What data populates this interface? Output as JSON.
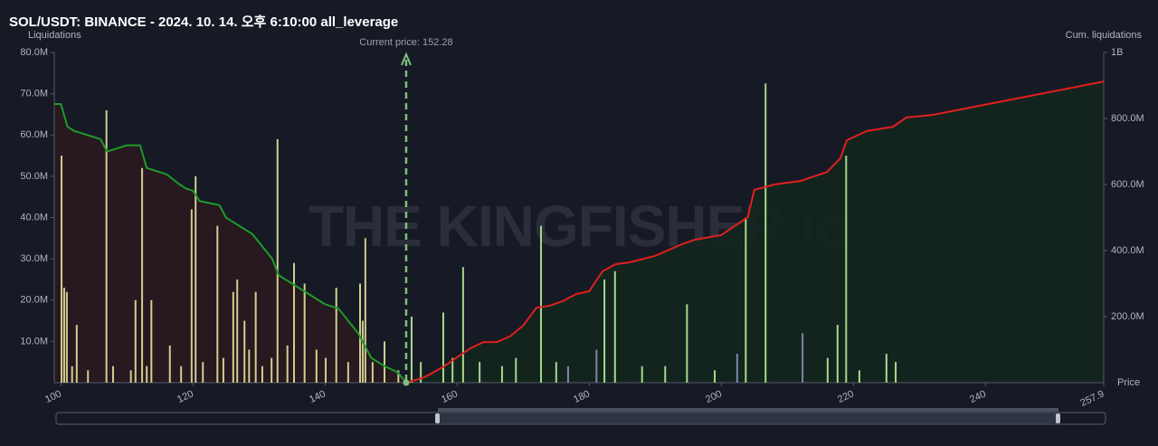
{
  "chart_data": {
    "type": "bar",
    "title": "SOL/USDT: BINANCE - 2024. 10. 14. 오후 6:10:00 all_leverage",
    "y_label": "Liquidations",
    "y2_label": "Cum. liquidations",
    "x_label": "Price",
    "watermark": "THE KINGFISHER.io",
    "annotation": {
      "value": 152.28,
      "label": "Current price: 152.28",
      "color": "#7fbf7f"
    },
    "xlim": [
      99,
      257.9
    ],
    "xticks": [
      100,
      120,
      140,
      160,
      180,
      200,
      220,
      240,
      257.9
    ],
    "ylim": [
      0,
      80000000
    ],
    "yticks": [
      {
        "value": 10000000,
        "label": "10.0M"
      },
      {
        "value": 20000000,
        "label": "20.0M"
      },
      {
        "value": 30000000,
        "label": "30.0M"
      },
      {
        "value": 40000000,
        "label": "40.0M"
      },
      {
        "value": 50000000,
        "label": "50.0M"
      },
      {
        "value": 60000000,
        "label": "60.0M"
      },
      {
        "value": 70000000,
        "label": "70.0M"
      },
      {
        "value": 80000000,
        "label": "80.0M"
      }
    ],
    "y2lim": [
      0,
      1000000000
    ],
    "y2ticks": [
      {
        "value": 200000000,
        "label": "200.0M"
      },
      {
        "value": 400000000,
        "label": "400.0M"
      },
      {
        "value": 600000000,
        "label": "600.0M"
      },
      {
        "value": 800000000,
        "label": "800.0M"
      },
      {
        "value": 1000000000,
        "label": "1B"
      }
    ],
    "series": [
      {
        "color": "#cfcf8f",
        "x": [
          100.1,
          100.5,
          100.9,
          101.7,
          102.4,
          104.1,
          106.9,
          107.9,
          110.6,
          111.3,
          112.3,
          113.0,
          113.7,
          116.5,
          118.2,
          119.8,
          120.4,
          121.5,
          123.7,
          124.6,
          126.1,
          126.7,
          127.8,
          128.5,
          129.5,
          130.5,
          131.9,
          132.8,
          134.3,
          135.3,
          136.9,
          138.7,
          140.1,
          141.7,
          143.5,
          145.3,
          145.7,
          146.1,
          147.2,
          149.0,
          151.1
        ],
        "values": [
          55000000,
          23000000,
          22000000,
          4000000,
          14000000,
          3000000,
          66000000,
          4000000,
          3000000,
          20000000,
          52000000,
          4000000,
          20000000,
          9000000,
          4000000,
          42000000,
          50000000,
          5000000,
          38000000,
          6000000,
          22000000,
          25000000,
          15000000,
          8000000,
          22000000,
          4000000,
          6000000,
          59000000,
          9000000,
          29000000,
          24000000,
          8000000,
          6000000,
          23000000,
          5000000,
          24000000,
          15000000,
          35000000,
          5000000,
          10000000,
          3000000
        ]
      },
      {
        "color": "#a6d98a",
        "x": [
          153.1,
          154.5,
          157.9,
          159.3,
          160.9,
          163.4,
          166.8,
          168.9,
          172.7,
          175.0,
          182.3,
          183.9,
          188.0,
          191.5,
          194.8,
          199.0,
          203.7,
          206.7,
          216.1,
          217.6,
          218.9,
          220.9,
          225.0,
          226.4
        ],
        "values": [
          16000000,
          5000000,
          17000000,
          6000000,
          28000000,
          5000000,
          4000000,
          6000000,
          38000000,
          5000000,
          25000000,
          27000000,
          4000000,
          4000000,
          19000000,
          3000000,
          40000000,
          72500000,
          6000000,
          14000000,
          55000000,
          3000000,
          7000000,
          5000000
        ]
      },
      {
        "color": "#7f86a8",
        "x": [
          176.8,
          181.1,
          202.4,
          212.3
        ],
        "values": [
          4000000,
          8000000,
          7000000,
          12000000
        ]
      }
    ],
    "lines": [
      {
        "color": "#1f9a2a",
        "fill": "#2a1820",
        "axis": "y",
        "x": [
          99,
          100,
          101,
          102,
          103,
          104,
          105,
          106,
          107,
          108,
          110,
          112,
          113,
          115,
          116,
          118,
          119,
          120,
          121,
          124,
          125,
          127,
          129,
          130,
          131,
          132,
          133,
          135,
          137,
          140,
          142,
          143,
          145,
          146,
          147,
          149,
          151,
          152.28
        ],
        "values": [
          67500000,
          67500000,
          62000000,
          61000000,
          60500000,
          60000000,
          59500000,
          59000000,
          56000000,
          56500000,
          57500000,
          57500000,
          52000000,
          51000000,
          50500000,
          48000000,
          47000000,
          46500000,
          44000000,
          43000000,
          40000000,
          38000000,
          36000000,
          34000000,
          32000000,
          30000000,
          26000000,
          24000000,
          22000000,
          19000000,
          18000000,
          16000000,
          12000000,
          9000000,
          6000000,
          4000000,
          2500000,
          0
        ]
      },
      {
        "color": "#e0201e",
        "fill": "#13261f",
        "axis": "y2",
        "x": [
          152.28,
          155,
          158,
          160,
          162,
          164,
          166,
          168,
          170,
          172,
          174,
          176,
          178,
          180,
          182,
          184,
          186,
          190,
          194,
          196,
          200,
          202,
          204,
          205,
          208,
          212,
          216,
          218,
          219,
          222,
          226,
          228,
          232,
          257.9
        ],
        "values": [
          0,
          16000000,
          49000000,
          77000000,
          104000000,
          123000000,
          123000000,
          140000000,
          173000000,
          227000000,
          233000000,
          247000000,
          268000000,
          277000000,
          337000000,
          359000000,
          364000000,
          384000000,
          419000000,
          433000000,
          447000000,
          474000000,
          501000000,
          584000000,
          600000000,
          611000000,
          638000000,
          679000000,
          734000000,
          762000000,
          775000000,
          803000000,
          811000000,
          912000000
        ]
      }
    ]
  }
}
